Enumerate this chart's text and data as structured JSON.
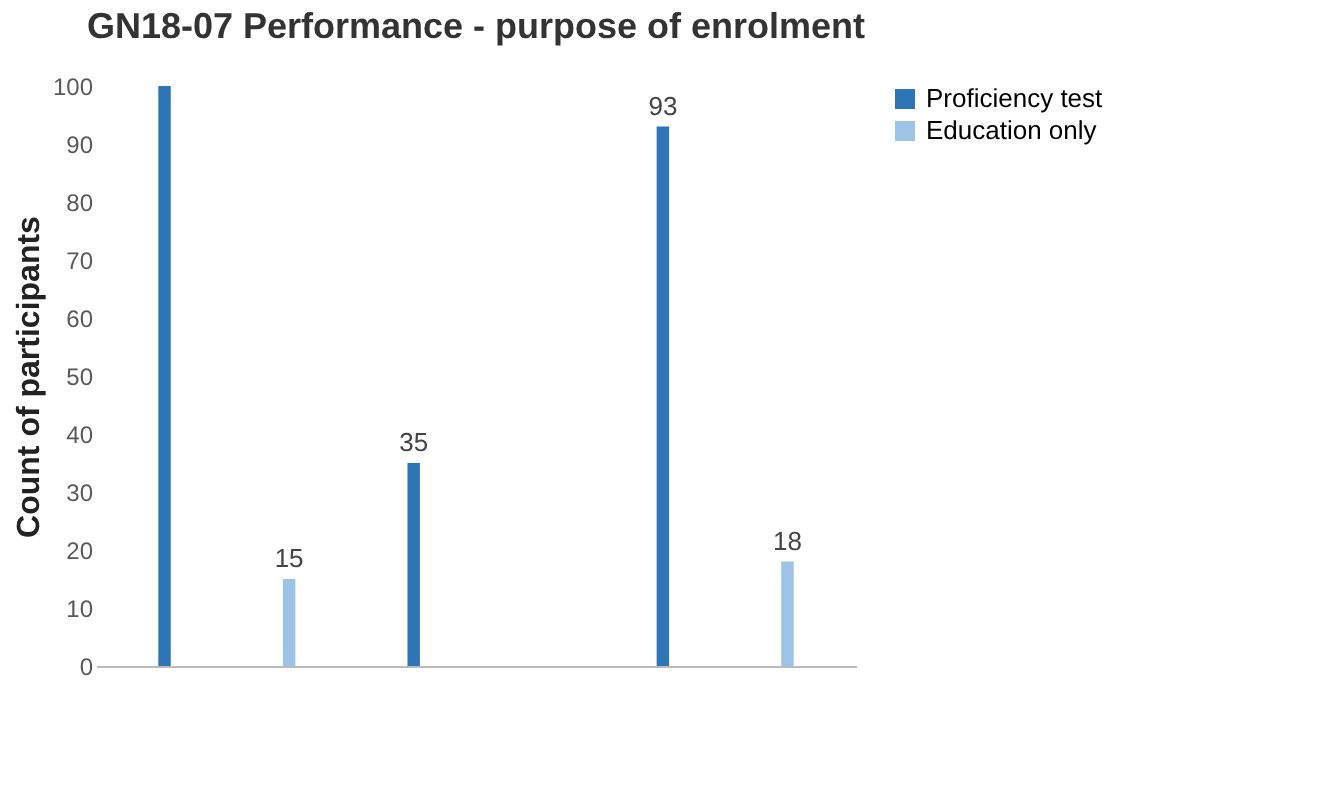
{
  "chart_data": {
    "type": "bar",
    "title": "GN18-07 Performance - purpose of enrolment",
    "ylabel": "Count of participants",
    "categories": [
      null,
      null,
      null
    ],
    "series": [
      {
        "name": "Proficiency test",
        "color": "#2e75b6",
        "values": [
          100,
          35,
          93
        ],
        "value_labels": [
          null,
          "35",
          "93"
        ]
      },
      {
        "name": "Education only",
        "color": "#9dc3e6",
        "values": [
          15,
          null,
          18
        ],
        "value_labels": [
          "15",
          null,
          "18"
        ]
      }
    ],
    "ylim": [
      0,
      100
    ],
    "yticks": [
      0,
      10,
      20,
      30,
      40,
      50,
      60,
      70,
      80,
      90,
      100
    ],
    "grid": false,
    "legend": "right"
  }
}
